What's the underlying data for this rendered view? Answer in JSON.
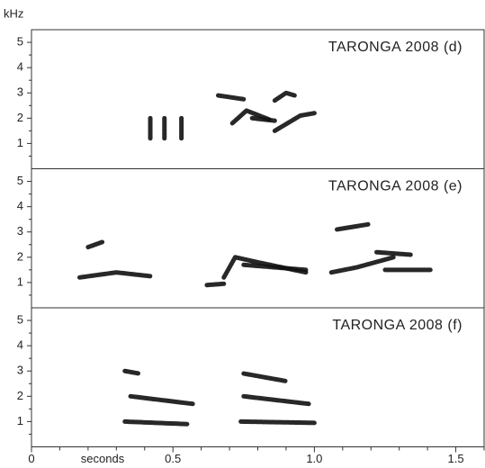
{
  "chart_data": [
    {
      "type": "spectrogram",
      "title": "TARONGA 2008 (d)",
      "ylabel": "kHz",
      "xlim": [
        0,
        1.6
      ],
      "ylim": [
        0,
        5.5
      ],
      "yticks": [
        1,
        2,
        3,
        4,
        5
      ],
      "color": "#111111",
      "traces": [
        {
          "x": [
            0.42,
            0.42
          ],
          "y": [
            1.2,
            2.0
          ]
        },
        {
          "x": [
            0.47,
            0.47
          ],
          "y": [
            1.2,
            2.0
          ]
        },
        {
          "x": [
            0.53,
            0.53
          ],
          "y": [
            1.2,
            2.0
          ]
        },
        {
          "x": [
            0.66,
            0.75
          ],
          "y": [
            2.9,
            2.75
          ]
        },
        {
          "x": [
            0.71,
            0.76,
            0.84
          ],
          "y": [
            1.8,
            2.3,
            1.95
          ]
        },
        {
          "x": [
            0.78,
            0.86
          ],
          "y": [
            2.0,
            1.9
          ]
        },
        {
          "x": [
            0.86,
            0.9,
            0.93
          ],
          "y": [
            2.7,
            3.0,
            2.9
          ]
        },
        {
          "x": [
            0.86,
            0.95,
            1.0
          ],
          "y": [
            1.5,
            2.1,
            2.2
          ]
        }
      ]
    },
    {
      "type": "spectrogram",
      "title": "TARONGA 2008 (e)",
      "xlim": [
        0,
        1.6
      ],
      "ylim": [
        0,
        5.5
      ],
      "yticks": [
        1,
        2,
        3,
        4,
        5
      ],
      "color": "#111111",
      "traces": [
        {
          "x": [
            0.2,
            0.25
          ],
          "y": [
            2.4,
            2.6
          ]
        },
        {
          "x": [
            0.17,
            0.3,
            0.42
          ],
          "y": [
            1.2,
            1.4,
            1.25
          ]
        },
        {
          "x": [
            0.62,
            0.68
          ],
          "y": [
            0.9,
            0.95
          ]
        },
        {
          "x": [
            0.68,
            0.72,
            0.8,
            0.97
          ],
          "y": [
            1.2,
            2.0,
            1.8,
            1.4
          ]
        },
        {
          "x": [
            0.75,
            0.97
          ],
          "y": [
            1.7,
            1.5
          ]
        },
        {
          "x": [
            1.08,
            1.19
          ],
          "y": [
            3.1,
            3.3
          ]
        },
        {
          "x": [
            1.06,
            1.15,
            1.28
          ],
          "y": [
            1.4,
            1.6,
            2.0
          ]
        },
        {
          "x": [
            1.22,
            1.34
          ],
          "y": [
            2.2,
            2.1
          ]
        },
        {
          "x": [
            1.25,
            1.41
          ],
          "y": [
            1.5,
            1.5
          ]
        }
      ]
    },
    {
      "type": "spectrogram",
      "title": "TARONGA 2008 (f)",
      "xlabel": "seconds",
      "xlim": [
        0,
        1.6
      ],
      "ylim": [
        0,
        5.5
      ],
      "yticks": [
        1,
        2,
        3,
        4,
        5
      ],
      "color": "#111111",
      "xticks": [
        0,
        0.5,
        {
          "value": 1,
          "label": "1.0"
        },
        1.5
      ],
      "xminorticks": [
        0.1,
        0.2,
        0.3,
        0.4,
        0.6,
        0.7,
        0.8,
        0.9,
        1.1,
        1.2,
        1.3,
        1.4,
        1.6
      ],
      "traces": [
        {
          "x": [
            0.33,
            0.55
          ],
          "y": [
            1.0,
            0.9
          ]
        },
        {
          "x": [
            0.35,
            0.57
          ],
          "y": [
            2.0,
            1.7
          ]
        },
        {
          "x": [
            0.33,
            0.38
          ],
          "y": [
            3.0,
            2.9
          ]
        },
        {
          "x": [
            0.74,
            1.0
          ],
          "y": [
            1.0,
            0.95
          ]
        },
        {
          "x": [
            0.75,
            0.98
          ],
          "y": [
            2.0,
            1.7
          ]
        },
        {
          "x": [
            0.75,
            0.9
          ],
          "y": [
            2.9,
            2.6
          ]
        }
      ]
    }
  ]
}
